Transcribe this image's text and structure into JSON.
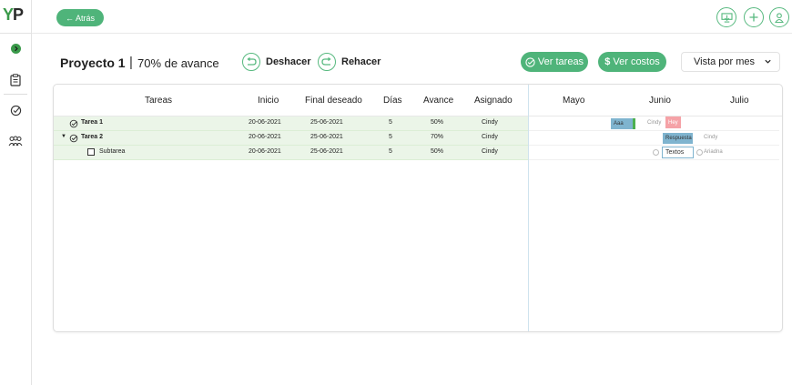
{
  "app": {
    "logo_y": "Y",
    "logo_p": "P"
  },
  "topbar": {
    "back_label": "Atrás"
  },
  "project": {
    "name": "Proyecto 1",
    "separator": "|",
    "progress": "70% de avance"
  },
  "actions": {
    "undo_label": "Deshacer",
    "redo_label": "Rehacer"
  },
  "buttons": {
    "tasks_label": "Ver tareas",
    "costs_label": "Ver costos",
    "costs_symbol": "$"
  },
  "view_select": {
    "value": "Vista por mes"
  },
  "table": {
    "columns": [
      "Tareas",
      "Inicio",
      "Final deseado",
      "Días",
      "Avance",
      "Asignado"
    ],
    "rows": [
      {
        "name": "Tarea 1",
        "start": "20-06-2021",
        "end": "25-06-2021",
        "days": "5",
        "progress": "50%",
        "assignee": "Cindy"
      },
      {
        "name": "Tarea 2",
        "start": "20-06-2021",
        "end": "25-06-2021",
        "days": "5",
        "progress": "70%",
        "assignee": "Cindy"
      },
      {
        "name": "Subtarea",
        "start": "20-06-2021",
        "end": "25-06-2021",
        "days": "5",
        "progress": "50%",
        "assignee": "Cindy"
      }
    ]
  },
  "gantt": {
    "months": [
      "Mayo",
      "Junio",
      "Julio"
    ],
    "row1": {
      "bar1": "Aaa",
      "assignee": "Cindy",
      "bar2": "Hey"
    },
    "row2": {
      "bar": "Respuesta",
      "assignee": "Cindy"
    },
    "row3": {
      "bar": "Textos",
      "assignee": "Ariadna"
    }
  },
  "colors": {
    "accent": "#4fb47a",
    "row_bg": "#ebf5e8"
  }
}
